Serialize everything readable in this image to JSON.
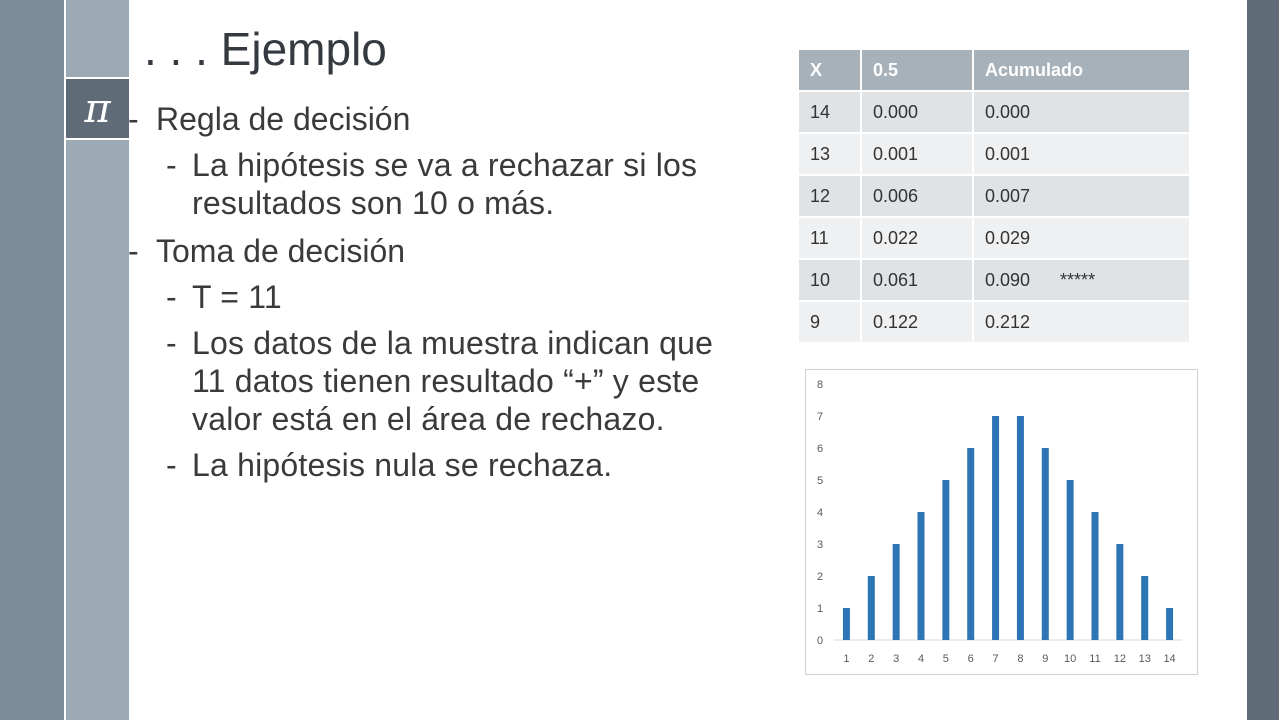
{
  "slide": {
    "title": ". . . Ejemplo",
    "pi_symbol": "π",
    "bullets": [
      {
        "text": "Regla de decisión",
        "sub": [
          "La hipótesis se va a rechazar si los resultados son 10 o más."
        ]
      },
      {
        "text": "Toma de decisión",
        "sub": [
          "T = 11",
          "Los datos de la muestra indican que 11 datos tienen resultado “+” y este valor está en el área de rechazo.",
          "La hipótesis nula se rechaza."
        ]
      }
    ]
  },
  "table": {
    "headers": [
      "X",
      "0.5",
      "Acumulado"
    ],
    "rows": [
      [
        "14",
        "0.000",
        "0.000",
        ""
      ],
      [
        "13",
        "0.001",
        "0.001",
        ""
      ],
      [
        "12",
        "0.006",
        "0.007",
        ""
      ],
      [
        "11",
        "0.022",
        "0.029",
        ""
      ],
      [
        "10",
        "0.061",
        "0.090",
        "*****"
      ],
      [
        "9",
        "0.122",
        "0.212",
        ""
      ]
    ]
  },
  "colors": {
    "bar": "#2e75b6",
    "band_dark": "#5f6c78",
    "band_light": "#9baab5"
  },
  "chart_data": {
    "type": "bar",
    "categories": [
      "1",
      "2",
      "3",
      "4",
      "5",
      "6",
      "7",
      "8",
      "9",
      "10",
      "11",
      "12",
      "13",
      "14"
    ],
    "values": [
      1,
      2,
      3,
      4,
      5,
      6,
      7,
      7,
      6,
      5,
      4,
      3,
      2,
      1
    ],
    "yticks": [
      0,
      1,
      2,
      3,
      4,
      5,
      6,
      7,
      8
    ],
    "ylim": [
      0,
      8
    ],
    "title": "",
    "xlabel": "",
    "ylabel": "",
    "grid": false,
    "legend": "none"
  }
}
